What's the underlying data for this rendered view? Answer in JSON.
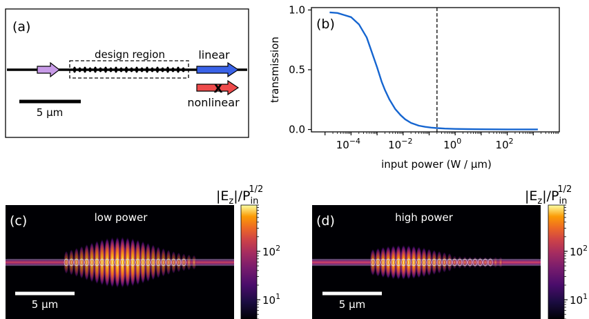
{
  "panel_a": {
    "label": "(a)",
    "design_region_label": "design region",
    "linear_label": "linear",
    "nonlinear_label": "nonlinear",
    "blocked_mark": "X",
    "scalebar_label": "5 μm",
    "colors": {
      "input_arrow": "#c89be8",
      "linear_arrow": "#3a63e8",
      "nonlinear_arrow": "#ee4b4b"
    }
  },
  "panel_b": {
    "label": "(b)",
    "threshold_marker": {
      "style": "dashed",
      "x": 0.2
    }
  },
  "panel_c": {
    "label": "(c)",
    "title": "low power",
    "scalebar_label": "5 μm"
  },
  "panel_d": {
    "label": "(d)",
    "title": "high power",
    "scalebar_label": "5 μm"
  },
  "colorbar": {
    "title_main": "|E",
    "title_sub": "z",
    "title_mid": "|/P",
    "title_sup": "1/2",
    "title_in": "in",
    "ticks": [
      {
        "base": "10",
        "exp": "1",
        "value": 10
      },
      {
        "base": "10",
        "exp": "2",
        "value": 100
      }
    ],
    "range": [
      4,
      900
    ],
    "colormap": "inferno"
  },
  "chart_data": {
    "type": "line",
    "xlabel": "input power (W / μm)",
    "ylabel": "transmission",
    "xscale": "log",
    "xlim": [
      3e-06,
      10000
    ],
    "ylim": [
      -0.02,
      1.02
    ],
    "xticks": [
      {
        "base": "10",
        "exp": "−4",
        "value": 0.0001
      },
      {
        "base": "10",
        "exp": "−2",
        "value": 0.01
      },
      {
        "base": "10",
        "exp": "0",
        "value": 1
      },
      {
        "base": "10",
        "exp": "2",
        "value": 100
      }
    ],
    "yticks": [
      {
        "label": "0.0",
        "value": 0.0
      },
      {
        "label": "0.5",
        "value": 0.5
      },
      {
        "label": "1.0",
        "value": 1.0
      }
    ],
    "series": [
      {
        "color": "#1565d0",
        "x": [
          1.5e-05,
          3e-05,
          5e-05,
          0.0001,
          0.0002,
          0.0004,
          0.0006,
          0.001,
          0.0015,
          0.002,
          0.003,
          0.005,
          0.008,
          0.012,
          0.02,
          0.04,
          0.07,
          0.12,
          0.2,
          0.4,
          1,
          3,
          10,
          100,
          1000,
          1500
        ],
        "y": [
          0.98,
          0.975,
          0.96,
          0.94,
          0.88,
          0.77,
          0.66,
          0.52,
          0.4,
          0.33,
          0.25,
          0.17,
          0.12,
          0.085,
          0.055,
          0.032,
          0.022,
          0.016,
          0.012,
          0.008,
          0.005,
          0.003,
          0.002,
          0.001,
          0.001,
          0.001
        ]
      }
    ],
    "grid": false,
    "legend": "none"
  }
}
